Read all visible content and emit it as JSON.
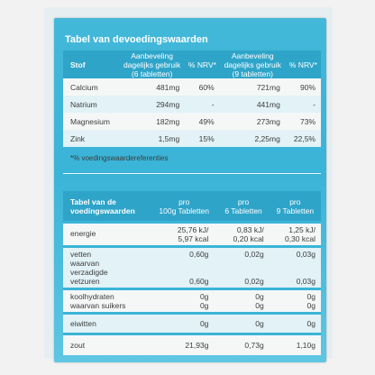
{
  "table1": {
    "title": "Tabel van devoedingswaarden",
    "headers": {
      "stof": "Stof",
      "adv6": [
        "Aanbeveling",
        "dagelijks gebruik",
        "(6 tabletten)"
      ],
      "nrv": "% NRV*",
      "adv9": [
        "Aanbeveling",
        "dagelijks gebruik",
        "(9 tabletten)"
      ],
      "nrv2": "% NRV*"
    },
    "rows": [
      {
        "name": "Calcium",
        "a6": "481mg",
        "n6": "60%",
        "a9": "721mg",
        "n9": "90%"
      },
      {
        "name": "Natrium",
        "a6": "294mg",
        "n6": "-",
        "a9": "441mg",
        "n9": "-"
      },
      {
        "name": "Magnesium",
        "a6": "182mg",
        "n6": "49%",
        "a9": "273mg",
        "n9": "73%"
      },
      {
        "name": "Zink",
        "a6": "1,5mg",
        "n6": "15%",
        "a9": "2,25mg",
        "n9": "22,5%"
      }
    ],
    "footnote": "*% voedingswaardereferenties"
  },
  "table2": {
    "header": [
      "Tabel van de",
      "voedingswaarden"
    ],
    "columns": [
      [
        "pro",
        "100g Tabletten"
      ],
      [
        "pro",
        "6 Tabletten"
      ],
      [
        "pro",
        "9 Tabletten"
      ]
    ],
    "rows": [
      {
        "labels": [
          "energie"
        ],
        "c1": [
          "25,76 kJ/",
          "5,97 kcal"
        ],
        "c2": [
          "0,83 kJ/",
          "0,20 kcal"
        ],
        "c3": [
          "1,25 kJ/",
          "0,30 kcal"
        ]
      },
      {
        "labels": [
          "vetten",
          "waarvan",
          "verzadigde",
          "vetzuren"
        ],
        "c1": [
          "0,60g",
          "",
          "",
          "0,60g"
        ],
        "c2": [
          "0,02g",
          "",
          "",
          "0,02g"
        ],
        "c3": [
          "0,03g",
          "",
          "",
          "0,03g"
        ]
      },
      {
        "labels": [
          "koolhydraten",
          "waarvan suikers"
        ],
        "c1": [
          "0g",
          "0g"
        ],
        "c2": [
          "0g",
          "0g"
        ],
        "c3": [
          "0g",
          "0g"
        ]
      },
      {
        "labels": [
          "eiwitten"
        ],
        "c1": [
          "0g"
        ],
        "c2": [
          "0g"
        ],
        "c3": [
          "0g"
        ]
      },
      {
        "labels": [
          "zout"
        ],
        "c1": [
          "21,93g"
        ],
        "c2": [
          "0,73g"
        ],
        "c3": [
          "1,10g"
        ]
      }
    ]
  }
}
